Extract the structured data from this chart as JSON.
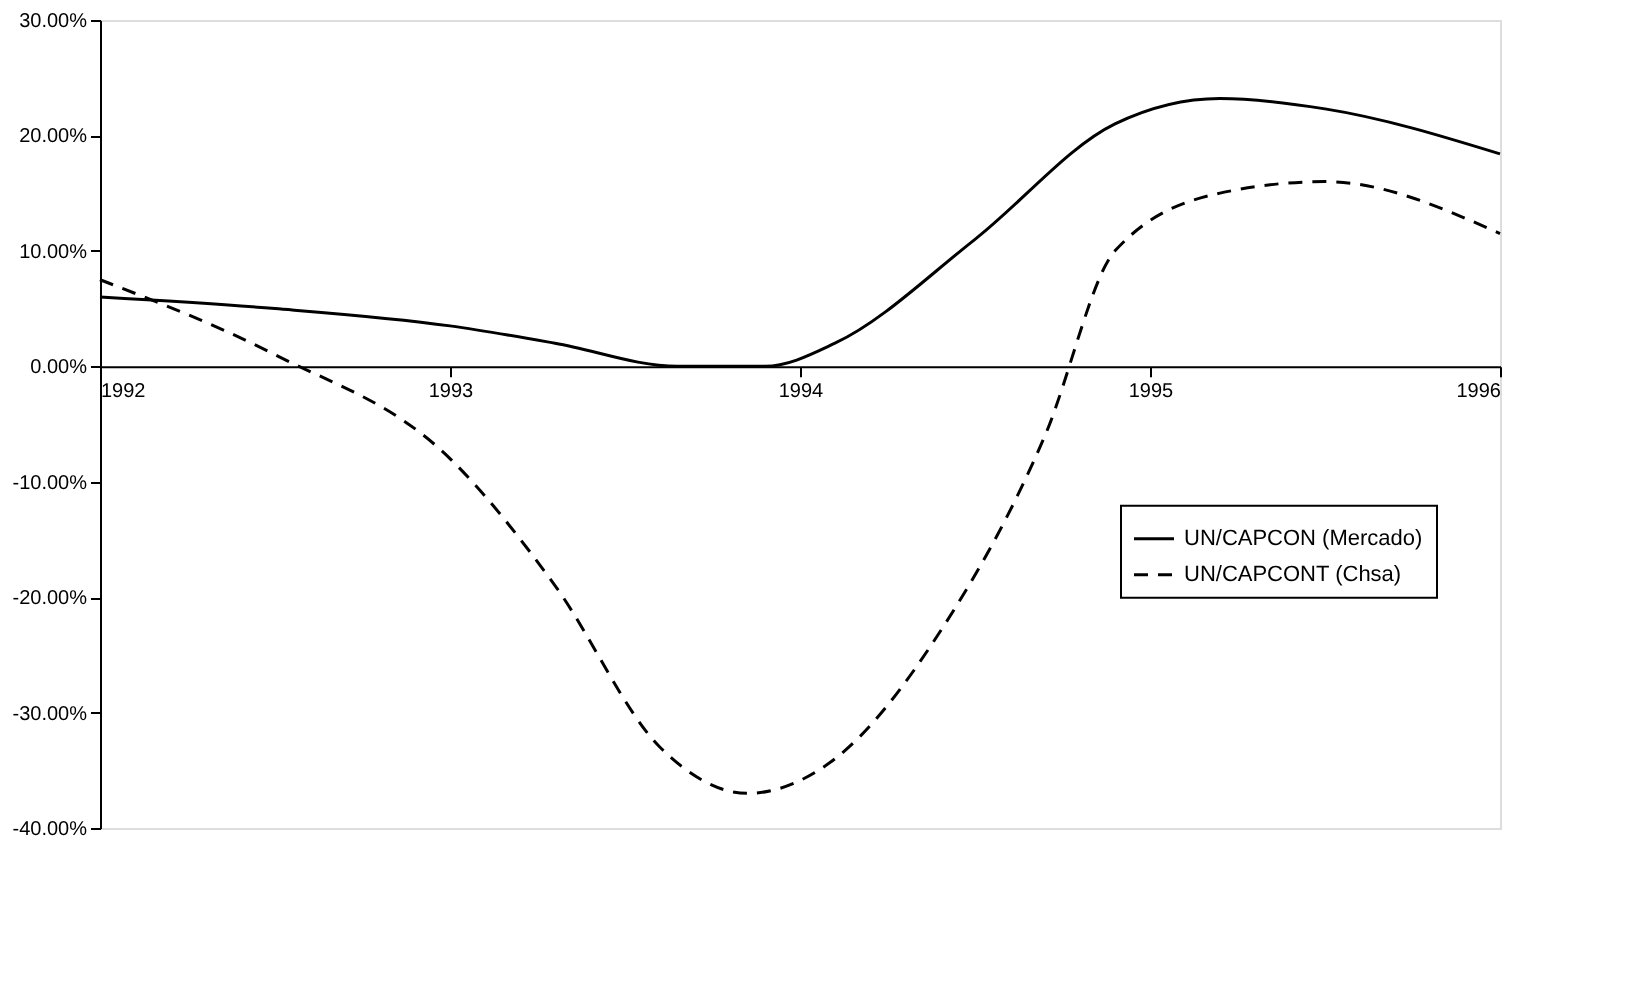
{
  "chart_data": {
    "type": "line",
    "x": [
      1992,
      1992.5,
      1993,
      1993.3,
      1993.6,
      1993.85,
      1994.1,
      1994.4,
      1994.7,
      1994.9,
      1995.2,
      1995.5,
      1996
    ],
    "series": [
      {
        "name": "UN/CAPCON (Mercado)",
        "color": "#000000",
        "line_style": "solid",
        "x": [
          1992,
          1992.5,
          1993,
          1993.3,
          1993.65,
          1993.9,
          1994.1,
          1994.5,
          1994.9,
          1995.2,
          1995.5,
          1996
        ],
        "values": [
          6,
          5,
          3.5,
          2,
          0,
          0,
          2,
          11,
          21,
          23.2,
          22.3,
          18.4
        ]
      },
      {
        "name": "UN/CAPCONT (Chsa)",
        "color": "#000000",
        "line_style": "dashed",
        "values": [
          7.5,
          1,
          -8,
          -19,
          -33,
          -37,
          -34,
          -23,
          -6,
          10,
          15,
          16,
          11.5
        ]
      }
    ],
    "xlim": [
      1992,
      1996
    ],
    "xticks": [
      1992,
      1993,
      1994,
      1995,
      1996
    ],
    "ylim": [
      -40,
      30
    ],
    "yticks": [
      {
        "value": 30,
        "label": "30.00%"
      },
      {
        "value": 20,
        "label": "20.00%"
      },
      {
        "value": 10,
        "label": "10.00%"
      },
      {
        "value": 0,
        "label": "0.00%"
      },
      {
        "value": -10,
        "label": "-10.00%"
      },
      {
        "value": -20,
        "label": "-20.00%"
      },
      {
        "value": -30,
        "label": "-30.00%"
      },
      {
        "value": -40,
        "label": "-40.00%"
      }
    ],
    "grid": false,
    "legend": "right",
    "marker": "none"
  }
}
